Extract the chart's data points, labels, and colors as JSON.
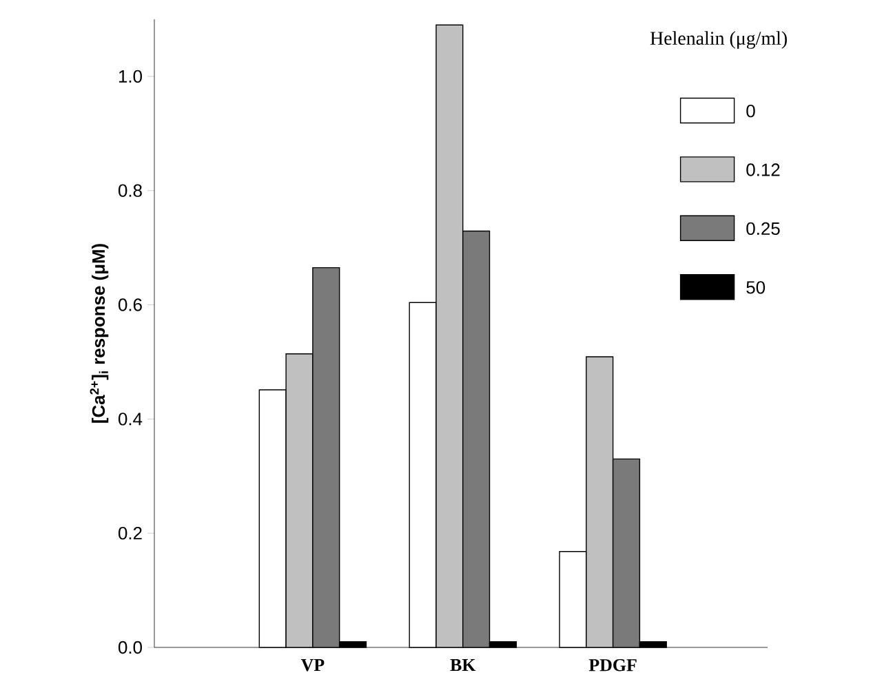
{
  "chart_data": {
    "type": "bar",
    "categories": [
      "VP",
      "BK",
      "PDGF"
    ],
    "ylabel": "[Ca$^{2+}$]$_{i}$ response (μM)",
    "legend_title": "Helenalin (μg/ml)",
    "series": [
      {
        "name": "0",
        "color": "#ffffff",
        "values": [
          0.451,
          0.604,
          0.168
        ]
      },
      {
        "name": "0.12",
        "color": "#c0c0c0",
        "values": [
          0.514,
          1.09,
          0.509
        ]
      },
      {
        "name": "0.25",
        "color": "#7a7a7a",
        "values": [
          0.665,
          0.729,
          0.33
        ]
      },
      {
        "name": "50",
        "color": "#000000",
        "values": [
          0.01,
          0.01,
          0.01
        ]
      }
    ],
    "ylim": [
      0,
      1.1
    ],
    "yticks": [
      {
        "value": 0,
        "label": "0.0"
      },
      0.2,
      0.4,
      0.6,
      0.8,
      {
        "value": 1,
        "label": "1.0"
      }
    ],
    "grid": false,
    "legend": "top right"
  }
}
